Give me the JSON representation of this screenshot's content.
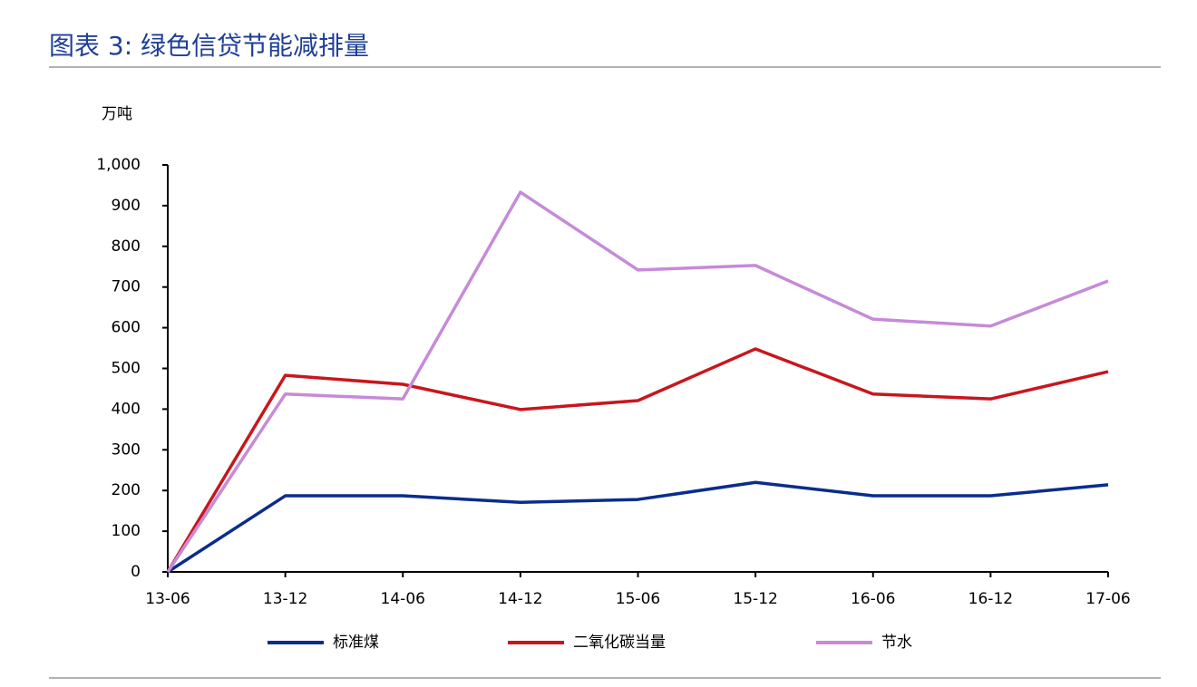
{
  "chart_data": {
    "type": "line",
    "title": "图表 3:  绿色信贷节能减排量",
    "y_label": "万吨",
    "categories": [
      "13-06",
      "13-12",
      "14-06",
      "14-12",
      "15-06",
      "15-12",
      "16-06",
      "16-12",
      "17-06"
    ],
    "series": [
      {
        "name": "标准煤",
        "color": "#0a2d8c",
        "values": [
          0,
          187,
          187,
          171,
          178,
          220,
          187,
          187,
          214
        ]
      },
      {
        "name": "二氧化碳当量",
        "color": "#c8161d",
        "values": [
          0,
          483,
          461,
          399,
          421,
          548,
          437,
          425,
          492
        ]
      },
      {
        "name": "节水",
        "color": "#c78ad8",
        "values": [
          0,
          437,
          425,
          933,
          742,
          753,
          621,
          604,
          715
        ]
      }
    ],
    "ylim": [
      0,
      1000
    ],
    "yticks": [
      0,
      100,
      200,
      300,
      400,
      500,
      600,
      700,
      800,
      900,
      {
        "value": 1000,
        "label": "1,000"
      }
    ],
    "grid": false
  }
}
